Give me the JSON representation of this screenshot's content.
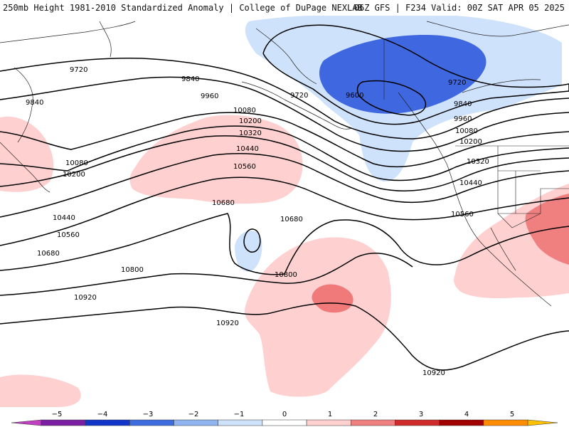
{
  "header": {
    "left_title": "250mb Height 1981-2010 Standardized Anomaly | College of DuPage NEXLAB",
    "right_title": "06Z GFS | F234 Valid: 00Z SAT APR 05 2025"
  },
  "contour_labels": {
    "c9600": "9600",
    "c9720": "9720",
    "c9840": "9840",
    "c9960": "9960",
    "c10080": "10080",
    "c10200": "10200",
    "c10320": "10320",
    "c10440": "10440",
    "c10560": "10560",
    "c10680": "10680",
    "c10800": "10800",
    "c10920": "10920"
  },
  "colorbar": {
    "ticks": [
      "−5",
      "−4",
      "−3",
      "−2",
      "−1",
      "0",
      "1",
      "2",
      "3",
      "4",
      "5"
    ],
    "colors": [
      "#c040c0",
      "#7b1fa2",
      "#1236c9",
      "#3c6ce0",
      "#8fb4f0",
      "#cfe2fb",
      "#ffffff",
      "#ffd0d0",
      "#f08080",
      "#d02a2a",
      "#a00000",
      "#ff8c00",
      "#ffc000"
    ]
  }
}
